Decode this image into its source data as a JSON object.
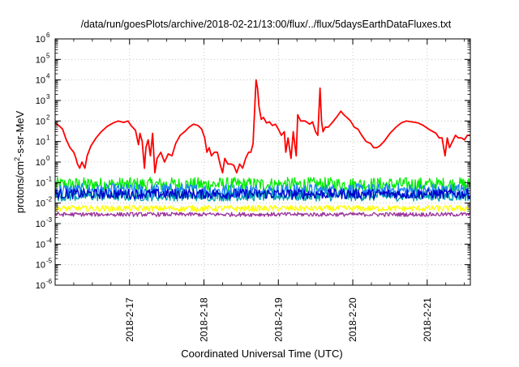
{
  "chart_data": {
    "type": "line",
    "title": "/data/run/goesPlots/archive/2018-02-21/13:00/flux/../flux/5daysEarthDataFluxes.txt",
    "xlabel": "Coordinated Universal Time (UTC)",
    "ylabel": {
      "base": "protons/cm",
      "sup": "2",
      "tail": "-s-sr-MeV"
    },
    "yscale": "log",
    "ylim_exp": [
      -6,
      6
    ],
    "xlim": [
      2018.0216,
      2018.0218
    ],
    "x_domain_days": [
      0.0,
      5.58
    ],
    "grid": true,
    "x_ticks": [
      {
        "day": 1,
        "label": "2018-2-17"
      },
      {
        "day": 2,
        "label": "2018-2-18"
      },
      {
        "day": 3,
        "label": "2018-2-19"
      },
      {
        "day": 4,
        "label": "2018-2-20"
      },
      {
        "day": 5,
        "label": "2018-2-21"
      }
    ],
    "y_ticks": [
      {
        "exp": 6,
        "label": "10",
        "sup": "6"
      },
      {
        "exp": 5,
        "label": "10",
        "sup": "5"
      },
      {
        "exp": 4,
        "label": "10",
        "sup": "4"
      },
      {
        "exp": 3,
        "label": "10",
        "sup": "3"
      },
      {
        "exp": 2,
        "label": "10",
        "sup": "2"
      },
      {
        "exp": 1,
        "label": "10",
        "sup": "1"
      },
      {
        "exp": 0,
        "label": "10",
        "sup": "0"
      },
      {
        "exp": -1,
        "label": "10",
        "sup": "-1"
      },
      {
        "exp": -2,
        "label": "10",
        "sup": "-2"
      },
      {
        "exp": -3,
        "label": "10",
        "sup": "-3"
      },
      {
        "exp": -4,
        "label": "10",
        "sup": "-4"
      },
      {
        "exp": -5,
        "label": "10",
        "sup": "-5"
      },
      {
        "exp": -6,
        "label": "10",
        "sup": "-6"
      }
    ],
    "series": [
      {
        "color": "#ff0000",
        "kind": "line",
        "points": [
          [
            0.0,
            80
          ],
          [
            0.05,
            60
          ],
          [
            0.1,
            40
          ],
          [
            0.15,
            12
          ],
          [
            0.2,
            5
          ],
          [
            0.25,
            3
          ],
          [
            0.28,
            1.5
          ],
          [
            0.3,
            0.8
          ],
          [
            0.33,
            0.5
          ],
          [
            0.36,
            1.0
          ],
          [
            0.4,
            0.5
          ],
          [
            0.43,
            2
          ],
          [
            0.48,
            6
          ],
          [
            0.55,
            15
          ],
          [
            0.62,
            30
          ],
          [
            0.7,
            55
          ],
          [
            0.78,
            80
          ],
          [
            0.85,
            100
          ],
          [
            0.92,
            85
          ],
          [
            0.98,
            100
          ],
          [
            1.02,
            60
          ],
          [
            1.08,
            35
          ],
          [
            1.12,
            7
          ],
          [
            1.14,
            25
          ],
          [
            1.17,
            10
          ],
          [
            1.2,
            0.5
          ],
          [
            1.22,
            5
          ],
          [
            1.25,
            12
          ],
          [
            1.28,
            2
          ],
          [
            1.31,
            25
          ],
          [
            1.34,
            0.3
          ],
          [
            1.37,
            1.5
          ],
          [
            1.42,
            3
          ],
          [
            1.47,
            1
          ],
          [
            1.52,
            2.5
          ],
          [
            1.57,
            2
          ],
          [
            1.62,
            8
          ],
          [
            1.68,
            20
          ],
          [
            1.74,
            30
          ],
          [
            1.8,
            50
          ],
          [
            1.86,
            70
          ],
          [
            1.92,
            60
          ],
          [
            1.97,
            40
          ],
          [
            2.01,
            15
          ],
          [
            2.04,
            3
          ],
          [
            2.07,
            5
          ],
          [
            2.1,
            2
          ],
          [
            2.14,
            3
          ],
          [
            2.18,
            3
          ],
          [
            2.22,
            0.7
          ],
          [
            2.25,
            0.3
          ],
          [
            2.28,
            1.5
          ],
          [
            2.32,
            0.8
          ],
          [
            2.36,
            0.8
          ],
          [
            2.4,
            0.7
          ],
          [
            2.44,
            0.3
          ],
          [
            2.48,
            0.8
          ],
          [
            2.52,
            0.5
          ],
          [
            2.56,
            1.5
          ],
          [
            2.6,
            3
          ],
          [
            2.63,
            3
          ],
          [
            2.66,
            8
          ],
          [
            2.7,
            10000
          ],
          [
            2.72,
            4000
          ],
          [
            2.74,
            500
          ],
          [
            2.77,
            120
          ],
          [
            2.8,
            150
          ],
          [
            2.84,
            80
          ],
          [
            2.88,
            90
          ],
          [
            2.92,
            60
          ],
          [
            2.96,
            70
          ],
          [
            3.0,
            40
          ],
          [
            3.04,
            20
          ],
          [
            3.08,
            30
          ],
          [
            3.1,
            3
          ],
          [
            3.13,
            15
          ],
          [
            3.17,
            1.5
          ],
          [
            3.2,
            30
          ],
          [
            3.24,
            2
          ],
          [
            3.26,
            200
          ],
          [
            3.3,
            100
          ],
          [
            3.36,
            100
          ],
          [
            3.42,
            70
          ],
          [
            3.46,
            90
          ],
          [
            3.5,
            30
          ],
          [
            3.53,
            20
          ],
          [
            3.56,
            4000
          ],
          [
            3.58,
            100
          ],
          [
            3.6,
            30
          ],
          [
            3.63,
            50
          ],
          [
            3.67,
            50
          ],
          [
            3.72,
            80
          ],
          [
            3.78,
            150
          ],
          [
            3.84,
            300
          ],
          [
            3.88,
            200
          ],
          [
            3.92,
            150
          ],
          [
            3.97,
            100
          ],
          [
            4.02,
            50
          ],
          [
            4.07,
            40
          ],
          [
            4.12,
            20
          ],
          [
            4.18,
            10
          ],
          [
            4.24,
            8
          ],
          [
            4.28,
            5
          ],
          [
            4.32,
            5
          ],
          [
            4.36,
            6
          ],
          [
            4.42,
            10
          ],
          [
            4.5,
            25
          ],
          [
            4.58,
            50
          ],
          [
            4.65,
            80
          ],
          [
            4.72,
            100
          ],
          [
            4.8,
            90
          ],
          [
            4.88,
            80
          ],
          [
            4.95,
            60
          ],
          [
            5.02,
            40
          ],
          [
            5.08,
            30
          ],
          [
            5.12,
            25
          ],
          [
            5.16,
            15
          ],
          [
            5.2,
            15
          ],
          [
            5.24,
            2
          ],
          [
            5.27,
            15
          ],
          [
            5.3,
            5
          ],
          [
            5.34,
            10
          ],
          [
            5.38,
            20
          ],
          [
            5.42,
            15
          ],
          [
            5.46,
            15
          ],
          [
            5.5,
            12
          ],
          [
            5.54,
            20
          ],
          [
            5.58,
            20
          ]
        ]
      },
      {
        "color": "#00ee00",
        "kind": "band",
        "base": 0.08,
        "spread_dex": 0.35,
        "cells": 520
      },
      {
        "color": "#1e7fff",
        "kind": "band",
        "base": 0.04,
        "spread_dex": 0.35,
        "cells": 520
      },
      {
        "color": "#00a0b0",
        "kind": "band",
        "base": 0.022,
        "spread_dex": 0.25,
        "cells": 520
      },
      {
        "color": "#0000cc",
        "kind": "band",
        "base": 0.028,
        "spread_dex": 0.25,
        "cells": 520
      },
      {
        "color": "#ffff00",
        "kind": "band",
        "base": 0.0055,
        "spread_dex": 0.15,
        "cells": 520
      },
      {
        "color": "#993399",
        "kind": "band",
        "base": 0.0028,
        "spread_dex": 0.1,
        "cells": 520
      }
    ]
  }
}
